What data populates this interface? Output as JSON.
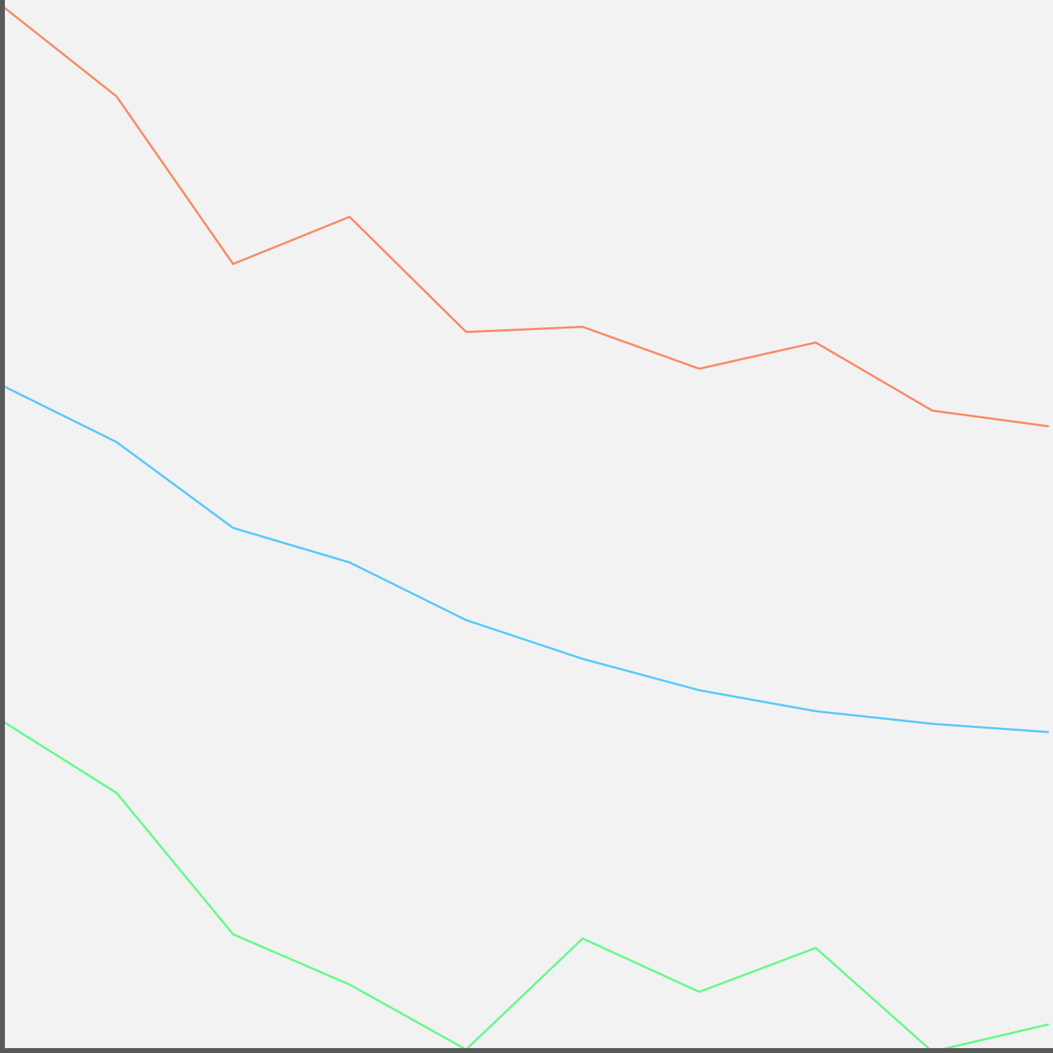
{
  "chart_data": {
    "type": "line",
    "title": "",
    "xlabel": "",
    "ylabel": "",
    "x": [
      0,
      1,
      2,
      3,
      4,
      5,
      6,
      7,
      8,
      9
    ],
    "xlim": [
      0,
      9
    ],
    "ylim": [
      0,
      100
    ],
    "grid": false,
    "legend": "none",
    "background_color": "#f2f2f2",
    "axis_color": "#595959",
    "series": [
      {
        "color": "#fa8a64",
        "values": [
          99.8,
          91.0,
          75.0,
          79.5,
          68.5,
          69.0,
          65.0,
          67.5,
          61.0,
          59.5
        ]
      },
      {
        "color": "#5ac8fa",
        "values": [
          63.5,
          58.0,
          49.8,
          46.5,
          41.0,
          37.3,
          34.3,
          32.3,
          31.1,
          30.3
        ]
      },
      {
        "color": "#64fa8a",
        "values": [
          31.5,
          24.5,
          11.0,
          6.2,
          0.0,
          10.6,
          5.5,
          9.7,
          -0.2,
          2.4
        ]
      }
    ]
  }
}
